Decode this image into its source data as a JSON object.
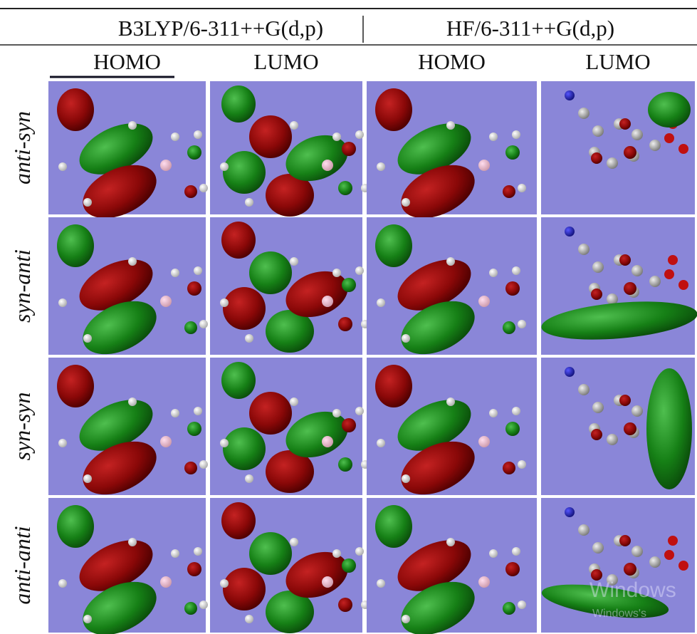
{
  "header": {
    "methods": [
      "B3LYP/6-311++G(d,p)",
      "HF/6-311++G(d,p)"
    ],
    "orbitals": [
      "HOMO",
      "LUMO",
      "HOMO",
      "LUMO"
    ]
  },
  "rows": [
    "anti-syn",
    "syn-anti",
    "syn-syn",
    "anti-anti"
  ],
  "watermark": [
    "Windows",
    "Windows's"
  ]
}
